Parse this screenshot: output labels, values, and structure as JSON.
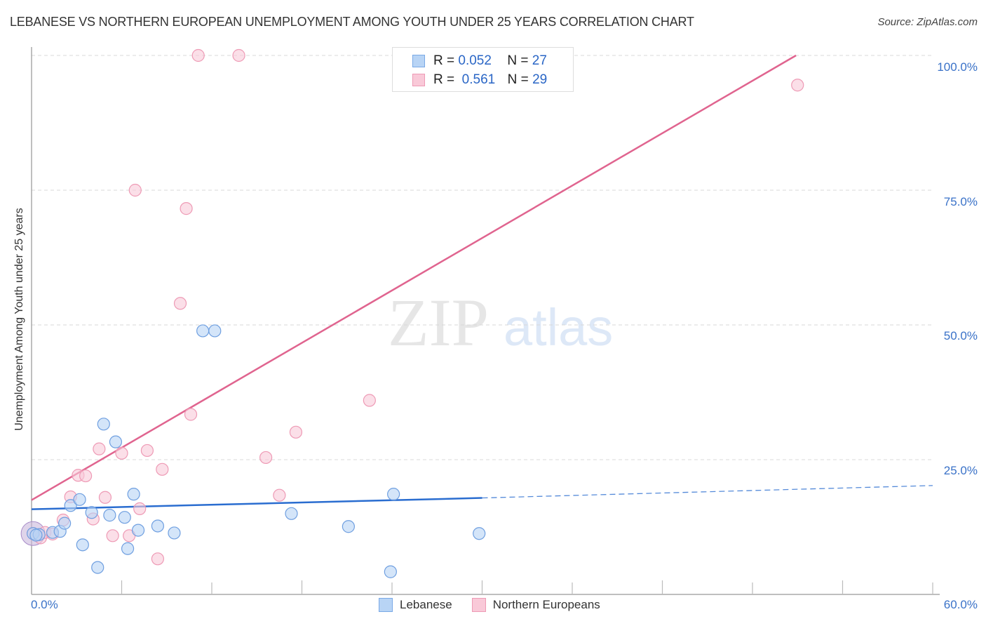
{
  "header": {
    "title": "LEBANESE VS NORTHERN EUROPEAN UNEMPLOYMENT AMONG YOUTH UNDER 25 YEARS CORRELATION CHART",
    "source": "Source: ZipAtlas.com"
  },
  "legend": {
    "rows": [
      {
        "r_label": "R =",
        "r_value": "0.052",
        "n_label": "N =",
        "n_value": "27",
        "color": "#b8d4f5",
        "border": "#7aa9e6"
      },
      {
        "r_label": "R =",
        "r_value": "0.561",
        "n_label": "N =",
        "n_value": "29",
        "color": "#f9c9d8",
        "border": "#ee9ab5"
      }
    ]
  },
  "bottom_legend": {
    "items": [
      {
        "label": "Lebanese",
        "color": "#b8d4f5",
        "border": "#7aa9e6"
      },
      {
        "label": "Northern Europeans",
        "color": "#f9c9d8",
        "border": "#ee9ab5"
      }
    ]
  },
  "watermark": {
    "zip": "ZIP",
    "atlas": "atlas"
  },
  "axes": {
    "y_label": "Unemployment Among Youth under 25 years",
    "y_ticks": [
      "100.0%",
      "75.0%",
      "50.0%",
      "25.0%"
    ],
    "x_min_label": "0.0%",
    "x_max_label": "60.0%"
  },
  "colors": {
    "lebanese_fill": "#b8d4f5",
    "lebanese_stroke": "#6f9fe0",
    "lebanese_line": "#2a6dd0",
    "northern_fill": "#f9c9d8",
    "northern_stroke": "#ee9ab5",
    "northern_line": "#e0648f",
    "tick_label": "#3a72c8"
  },
  "chart_data": {
    "type": "scatter",
    "title": "LEBANESE VS NORTHERN EUROPEAN UNEMPLOYMENT AMONG YOUTH UNDER 25 YEARS CORRELATION CHART",
    "xlabel": "",
    "ylabel": "Unemployment Among Youth under 25 years",
    "xlim": [
      0,
      60
    ],
    "ylim": [
      0,
      100
    ],
    "x_unit": "%",
    "y_unit": "%",
    "grid": "horizontal dashed at 25, 50, 75, 100",
    "legend_position": "top-center and bottom",
    "series": [
      {
        "name": "Lebanese",
        "R": 0.052,
        "N": 27,
        "points": [
          [
            0.1,
            11.3
          ],
          [
            0.5,
            11.1
          ],
          [
            1.4,
            11.5
          ],
          [
            1.9,
            11.7
          ],
          [
            2.2,
            13.2
          ],
          [
            2.6,
            16.5
          ],
          [
            3.2,
            17.6
          ],
          [
            3.4,
            9.2
          ],
          [
            4.0,
            15.2
          ],
          [
            4.4,
            5.0
          ],
          [
            4.8,
            31.6
          ],
          [
            5.2,
            14.7
          ],
          [
            5.6,
            28.3
          ],
          [
            6.2,
            14.3
          ],
          [
            6.4,
            8.5
          ],
          [
            6.8,
            18.6
          ],
          [
            7.1,
            11.9
          ],
          [
            8.4,
            12.7
          ],
          [
            9.5,
            11.4
          ],
          [
            11.4,
            48.9
          ],
          [
            12.2,
            48.9
          ],
          [
            17.3,
            15.0
          ],
          [
            21.1,
            12.6
          ],
          [
            23.9,
            4.2
          ],
          [
            24.1,
            18.6
          ],
          [
            29.8,
            11.3
          ],
          [
            0.3,
            11.0
          ]
        ],
        "trend": {
          "x0": 0,
          "y0": 15.8,
          "x1": 30,
          "y1": 17.9,
          "dashed_to": {
            "x": 60,
            "y": 20.2
          }
        }
      },
      {
        "name": "Northern Europeans",
        "R": 0.561,
        "N": 29,
        "points": [
          [
            0.1,
            11.3
          ],
          [
            0.6,
            10.5
          ],
          [
            0.9,
            11.5
          ],
          [
            1.4,
            11.2
          ],
          [
            2.1,
            13.8
          ],
          [
            2.6,
            18.1
          ],
          [
            3.1,
            22.1
          ],
          [
            3.6,
            22.0
          ],
          [
            4.1,
            14.0
          ],
          [
            4.5,
            27.0
          ],
          [
            4.9,
            18.0
          ],
          [
            5.4,
            10.9
          ],
          [
            6.0,
            26.2
          ],
          [
            6.5,
            10.9
          ],
          [
            6.9,
            75.0
          ],
          [
            7.2,
            15.9
          ],
          [
            7.7,
            26.7
          ],
          [
            8.4,
            6.6
          ],
          [
            8.7,
            23.2
          ],
          [
            9.9,
            54.0
          ],
          [
            10.3,
            71.6
          ],
          [
            10.6,
            33.4
          ],
          [
            11.1,
            100.0
          ],
          [
            13.8,
            100.0
          ],
          [
            15.6,
            25.4
          ],
          [
            16.5,
            18.4
          ],
          [
            17.6,
            30.1
          ],
          [
            22.5,
            36.0
          ],
          [
            51.0,
            94.5
          ]
        ],
        "trend": {
          "x0": 0,
          "y0": 17.5,
          "x1": 50.9,
          "y1": 100.0
        }
      }
    ]
  }
}
